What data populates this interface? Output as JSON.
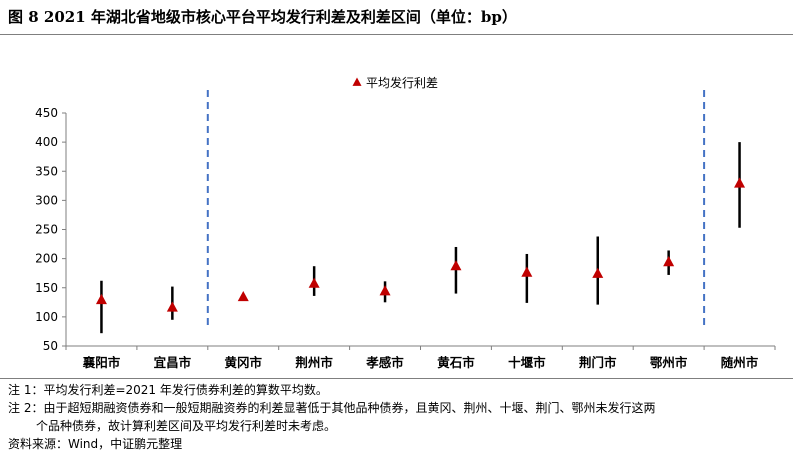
{
  "figure": {
    "title": "图 8  2021 年湖北省地级市核心平台平均发行利差及利差区间（单位：bp）"
  },
  "notes": [
    "注 1：平均发行利差=2021 年发行债券利差的算数平均数。",
    "注 2：由于超短期融资债券和一般短期融资券的利差显著低于其他品种债券，且黄冈、荆州、十堰、荆门、鄂州未发行这两",
    "个品种债券，故计算利差区间及平均发行利差时未考虑。",
    "资料来源：Wind，中证鹏元整理"
  ],
  "chart_data": {
    "type": "scatter",
    "title": "",
    "xlabel": "",
    "ylabel": "",
    "legend": {
      "label": "平均发行利差",
      "position": "top-center",
      "marker": "triangle"
    },
    "ylim": [
      50,
      450
    ],
    "yticks": [
      50,
      100,
      150,
      200,
      250,
      300,
      350,
      400,
      450
    ],
    "grid": false,
    "categories": [
      "襄阳市",
      "宜昌市",
      "黄冈市",
      "荆州市",
      "孝感市",
      "黄石市",
      "十堰市",
      "荆门市",
      "鄂州市",
      "随州市"
    ],
    "series": [
      {
        "name": "平均发行利差",
        "values": [
          130,
          117,
          135,
          158,
          145,
          188,
          177,
          175,
          195,
          330
        ]
      }
    ],
    "ranges": [
      [
        72,
        162
      ],
      [
        95,
        152
      ],
      null,
      [
        136,
        187
      ],
      [
        125,
        161
      ],
      [
        140,
        220
      ],
      [
        124,
        208
      ],
      [
        121,
        238
      ],
      [
        172,
        214
      ],
      [
        253,
        400
      ]
    ],
    "separators_after": [
      "宜昌市",
      "鄂州市"
    ],
    "colors": {
      "marker": "#c00000",
      "range_line": "#000000",
      "separator": "#4472c4",
      "axis": "#7f7f7f"
    }
  }
}
